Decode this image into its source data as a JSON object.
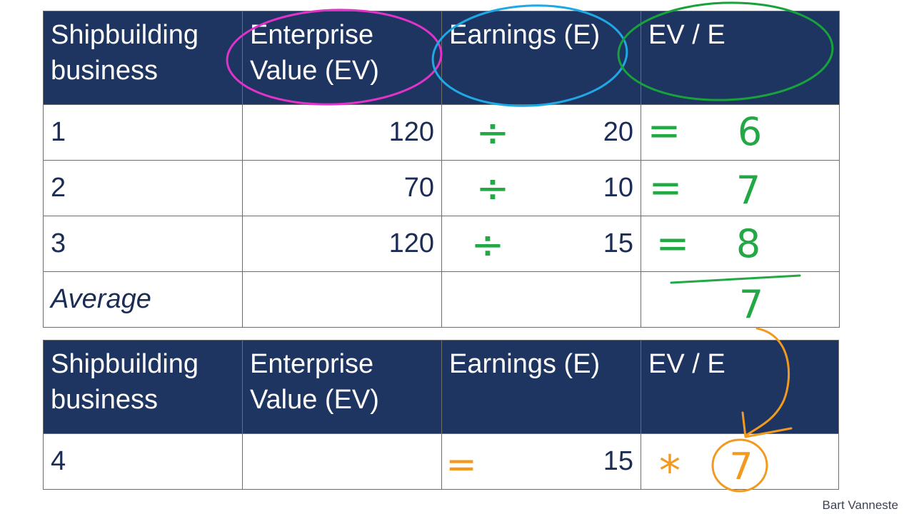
{
  "columns": [
    "Shipbuilding business",
    "Enterprise Value (EV)",
    "Earnings (E)",
    "EV / E"
  ],
  "table1": {
    "rows": [
      {
        "business": "1",
        "ev": "120",
        "e": "20"
      },
      {
        "business": "2",
        "ev": "70",
        "e": "10"
      },
      {
        "business": "3",
        "ev": "120",
        "e": "15"
      },
      {
        "business": "Average",
        "ev": "",
        "e": ""
      }
    ]
  },
  "table2": {
    "rows": [
      {
        "business": "4",
        "ev": "",
        "e": "15"
      }
    ]
  },
  "annotations": {
    "divide_signs": [
      "÷",
      "÷",
      "÷"
    ],
    "equals_signs": [
      "=",
      "=",
      "="
    ],
    "ratios": [
      "6",
      "7",
      "8"
    ],
    "average_result": "7",
    "row4_equals": "=",
    "row4_multiply": "*",
    "row4_circled_value": "7",
    "colors": {
      "ev_circle": "#e233c8",
      "e_circle": "#1ea8e4",
      "ratio_circle": "#17a33a",
      "green_ink": "#22a845",
      "orange_ink": "#f19a1f"
    }
  },
  "credit": "Bart Vanneste"
}
